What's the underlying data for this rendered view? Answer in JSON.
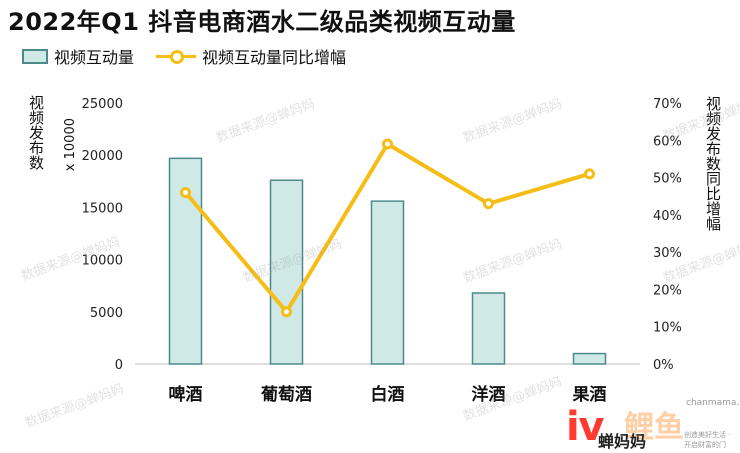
{
  "chart_data": {
    "type": "bar",
    "title": "2022年Q1 抖音电商酒水二级品类视频互动量",
    "categories": [
      "啤酒",
      "葡萄酒",
      "白酒",
      "洋酒",
      "果酒"
    ],
    "series": [
      {
        "name": "视频互动量",
        "kind": "bar",
        "axis": "left",
        "color": "#cfe9e7",
        "edge_color": "#4f8a8b",
        "values": [
          19700,
          17600,
          15600,
          6800,
          1000
        ]
      },
      {
        "name": "视频互动量同比增幅",
        "kind": "line",
        "axis": "right",
        "color": "#f6bd16",
        "values": [
          46,
          14,
          59,
          43,
          51
        ]
      }
    ],
    "ylabel": "视频发布数",
    "yunit": "x 10000",
    "y2label": "视频发布数同比增幅",
    "ylim": [
      0,
      25000
    ],
    "yticks": [
      "0",
      "5000",
      "10000",
      "15000",
      "20000",
      "25000"
    ],
    "y2lim": [
      0,
      70
    ],
    "y2ticks": [
      "0%",
      "10%",
      "20%",
      "30%",
      "40%",
      "50%",
      "60%",
      "70%"
    ],
    "grid": false,
    "legend_position": "top-left"
  },
  "watermark": "数据来源@蝉妈妈",
  "logo": {
    "name": "蝉妈妈",
    "site": "chanmama.com",
    "slogan": "创造美好生活 · 开启财富的门",
    "brand": "鲤鱼"
  }
}
